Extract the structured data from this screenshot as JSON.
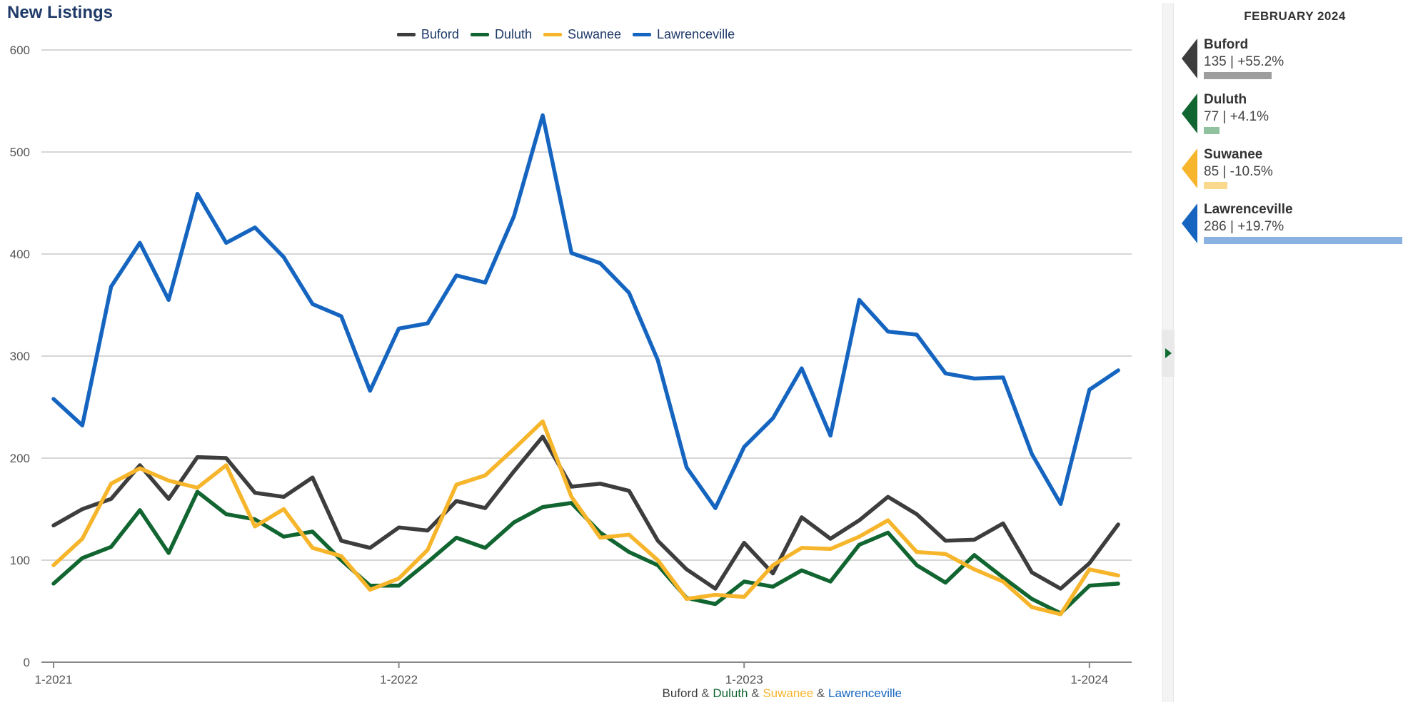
{
  "title": "New Listings",
  "chart_data": {
    "type": "line",
    "x": [
      "1-2021",
      "2-2021",
      "3-2021",
      "4-2021",
      "5-2021",
      "6-2021",
      "7-2021",
      "8-2021",
      "9-2021",
      "10-2021",
      "11-2021",
      "12-2021",
      "1-2022",
      "2-2022",
      "3-2022",
      "4-2022",
      "5-2022",
      "6-2022",
      "7-2022",
      "8-2022",
      "9-2022",
      "10-2022",
      "11-2022",
      "12-2022",
      "1-2023",
      "2-2023",
      "3-2023",
      "4-2023",
      "5-2023",
      "6-2023",
      "7-2023",
      "8-2023",
      "9-2023",
      "10-2023",
      "11-2023",
      "12-2023",
      "1-2024",
      "2-2024"
    ],
    "x_tick_labels": [
      "1-2021",
      "1-2022",
      "1-2023",
      "1-2024"
    ],
    "ylim": [
      0,
      600
    ],
    "yticks": [
      0,
      100,
      200,
      300,
      400,
      500,
      600
    ],
    "grid": true,
    "legend_position": "top-center",
    "series": [
      {
        "name": "Buford",
        "color": "#3d3d3d",
        "values": [
          134,
          150,
          160,
          193,
          160,
          201,
          200,
          166,
          162,
          181,
          119,
          112,
          132,
          129,
          158,
          151,
          187,
          221,
          172,
          175,
          168,
          119,
          91,
          72,
          117,
          87,
          142,
          121,
          139,
          162,
          145,
          119,
          120,
          136,
          88,
          72,
          97,
          135
        ]
      },
      {
        "name": "Duluth",
        "color": "#116530",
        "values": [
          77,
          102,
          113,
          149,
          107,
          167,
          145,
          140,
          123,
          128,
          100,
          75,
          75,
          98,
          122,
          112,
          137,
          152,
          156,
          127,
          108,
          95,
          63,
          57,
          79,
          74,
          90,
          79,
          115,
          127,
          95,
          78,
          105,
          83,
          62,
          48,
          75,
          77
        ]
      },
      {
        "name": "Suwanee",
        "color": "#f6b52b",
        "values": [
          95,
          121,
          175,
          190,
          178,
          171,
          193,
          133,
          150,
          112,
          104,
          71,
          82,
          110,
          174,
          183,
          209,
          236,
          162,
          122,
          125,
          100,
          62,
          66,
          64,
          95,
          112,
          111,
          123,
          139,
          108,
          106,
          91,
          79,
          54,
          47,
          91,
          85
        ]
      },
      {
        "name": "Lawrenceville",
        "color": "#1565c0",
        "values": [
          258,
          232,
          368,
          411,
          355,
          459,
          411,
          426,
          397,
          351,
          339,
          266,
          327,
          332,
          379,
          372,
          437,
          536,
          401,
          391,
          362,
          296,
          191,
          151,
          211,
          239,
          288,
          222,
          355,
          324,
          321,
          283,
          278,
          279,
          204,
          155,
          267,
          286
        ]
      }
    ]
  },
  "footer_caption": {
    "parts": [
      "Buford",
      " & ",
      "Duluth",
      " & ",
      "Suwanee",
      " & ",
      "Lawrenceville"
    ],
    "colors": [
      "#3d3d3d",
      "#555555",
      "#116530",
      "#555555",
      "#f6b52b",
      "#555555",
      "#1565c0"
    ]
  },
  "side_panel": {
    "heading": "FEBRUARY 2024",
    "items": [
      {
        "name": "Buford",
        "stat": "135 | +55.2%",
        "color": "#3d3d3d",
        "bar_color": "#9e9e9e",
        "bar_fraction": 0.34
      },
      {
        "name": "Duluth",
        "stat": "77 | +4.1%",
        "color": "#116530",
        "bar_color": "#8fc19e",
        "bar_fraction": 0.08
      },
      {
        "name": "Suwanee",
        "stat": "85 | -10.5%",
        "color": "#f6b52b",
        "bar_color": "#fad88c",
        "bar_fraction": 0.12
      },
      {
        "name": "Lawrenceville",
        "stat": "286 | +19.7%",
        "color": "#1565c0",
        "bar_color": "#8ab2e0",
        "bar_fraction": 1.0
      }
    ]
  }
}
